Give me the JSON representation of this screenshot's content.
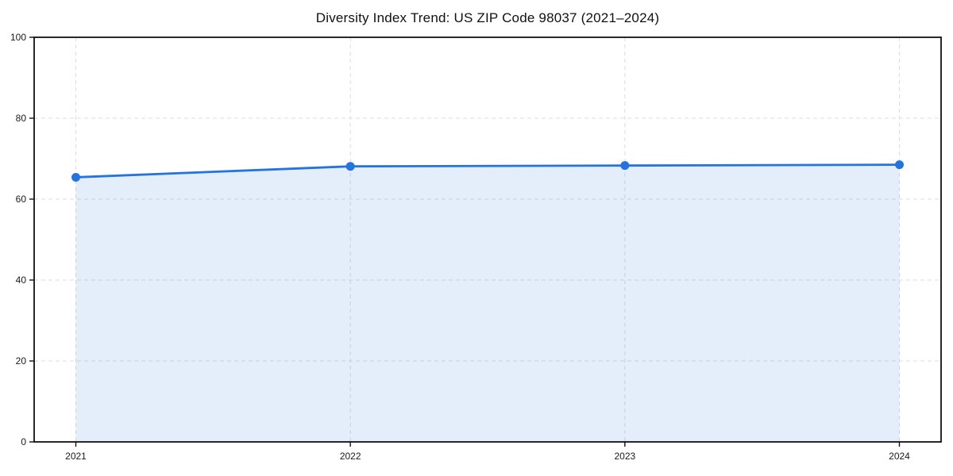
{
  "figure": {
    "background": "#ffffff"
  },
  "chart_data": {
    "type": "area",
    "title": "Diversity Index Trend: US ZIP Code 98037 (2021–2024)",
    "categories": [
      "2021",
      "2022",
      "2023",
      "2024"
    ],
    "series": [
      {
        "name": "Diversity Index",
        "values": [
          65.4,
          68.1,
          68.3,
          68.5
        ]
      }
    ],
    "xlabel": "",
    "ylabel": "",
    "ylim": [
      0,
      100
    ],
    "yticks": [
      0,
      20,
      40,
      60,
      80,
      100
    ],
    "grid": true,
    "grid_style": "dashed",
    "legend_position": "none",
    "colors": {
      "line": "#2373e1",
      "marker": "#2373e1",
      "fill": "#2373e1",
      "fill_opacity": 0.12,
      "grid": "#dcdcdc",
      "axis": "#111111",
      "text": "#1a1a1a",
      "background": "#ffffff"
    }
  }
}
